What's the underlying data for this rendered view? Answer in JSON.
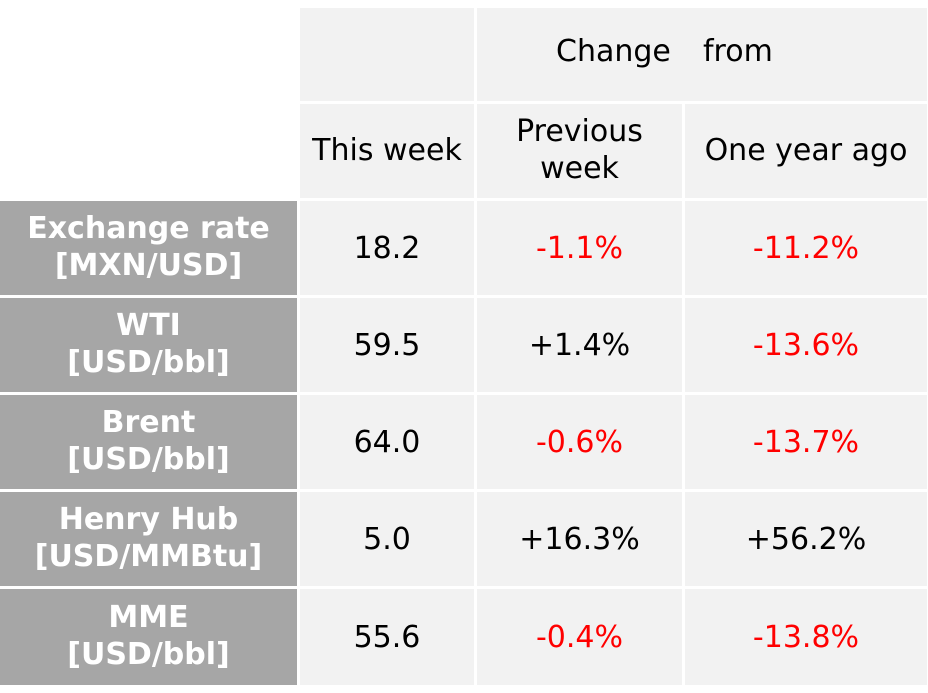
{
  "header": {
    "group_label_part1": "Change",
    "group_label_part2": "from",
    "col_this_week": "This week",
    "col_prev_week_line1": "Previous",
    "col_prev_week_line2": "week",
    "col_year_ago": "One year ago"
  },
  "rows": [
    {
      "name_line1": "Exchange rate",
      "name_line2": "[MXN/USD]",
      "this_week": "18.2",
      "prev_week": "-1.1%",
      "year_ago": "-11.2%"
    },
    {
      "name_line1": "WTI",
      "name_line2": "[USD/bbl]",
      "this_week": "59.5",
      "prev_week": "+1.4%",
      "year_ago": "-13.6%"
    },
    {
      "name_line1": "Brent",
      "name_line2": "[USD/bbl]",
      "this_week": "64.0",
      "prev_week": "-0.6%",
      "year_ago": "-13.7%"
    },
    {
      "name_line1": "Henry Hub",
      "name_line2": "[USD/MMBtu]",
      "this_week": "5.0",
      "prev_week": "+16.3%",
      "year_ago": "+56.2%"
    },
    {
      "name_line1": "MME",
      "name_line2": "[USD/bbl]",
      "this_week": "55.6",
      "prev_week": "-0.4%",
      "year_ago": "-13.8%"
    }
  ],
  "colors": {
    "negative": "#ff0000",
    "positive": "#000000",
    "row_header_bg": "#a6a6a6",
    "cell_bg": "#f2f2f2"
  }
}
